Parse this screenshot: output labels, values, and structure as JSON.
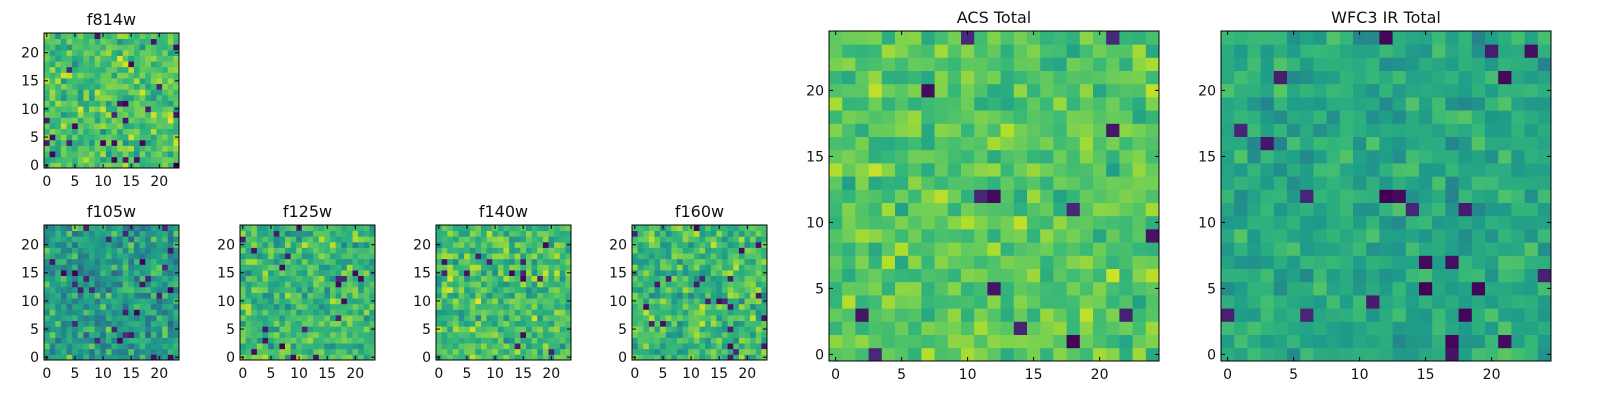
{
  "figure": {
    "colormap": "viridis",
    "frame_color": "#000000"
  },
  "chart_data": [
    {
      "type": "heatmap",
      "title": "f814w",
      "grid": false,
      "shape": [
        24,
        24
      ],
      "vmin": 0,
      "vmax": 1,
      "seed": 814,
      "mean": 0.72,
      "spread": 0.18,
      "dark_fraction": 0.04,
      "xticks": [
        0,
        5,
        10,
        15,
        20
      ],
      "yticks": [
        0,
        5,
        10,
        15,
        20
      ],
      "xlim": [
        -0.5,
        23.5
      ],
      "ylim": [
        -0.5,
        23.5
      ]
    },
    {
      "type": "heatmap",
      "title": "f105w",
      "grid": false,
      "shape": [
        24,
        24
      ],
      "vmin": 0,
      "vmax": 1,
      "seed": 105,
      "mean": 0.55,
      "spread": 0.2,
      "dark_fraction": 0.05,
      "xticks": [
        0,
        5,
        10,
        15,
        20
      ],
      "yticks": [
        0,
        5,
        10,
        15,
        20
      ],
      "xlim": [
        -0.5,
        23.5
      ],
      "ylim": [
        -0.5,
        23.5
      ]
    },
    {
      "type": "heatmap",
      "title": "f125w",
      "grid": false,
      "shape": [
        24,
        24
      ],
      "vmin": 0,
      "vmax": 1,
      "seed": 125,
      "mean": 0.68,
      "spread": 0.18,
      "dark_fraction": 0.03,
      "xticks": [
        0,
        5,
        10,
        15,
        20
      ],
      "yticks": [
        0,
        5,
        10,
        15,
        20
      ],
      "xlim": [
        -0.5,
        23.5
      ],
      "ylim": [
        -0.5,
        23.5
      ]
    },
    {
      "type": "heatmap",
      "title": "f140w",
      "grid": false,
      "shape": [
        24,
        24
      ],
      "vmin": 0,
      "vmax": 1,
      "seed": 140,
      "mean": 0.7,
      "spread": 0.18,
      "dark_fraction": 0.03,
      "xticks": [
        0,
        5,
        10,
        15,
        20
      ],
      "yticks": [
        0,
        5,
        10,
        15,
        20
      ],
      "xlim": [
        -0.5,
        23.5
      ],
      "ylim": [
        -0.5,
        23.5
      ]
    },
    {
      "type": "heatmap",
      "title": "f160w",
      "grid": false,
      "shape": [
        24,
        24
      ],
      "vmin": 0,
      "vmax": 1,
      "seed": 160,
      "mean": 0.68,
      "spread": 0.18,
      "dark_fraction": 0.04,
      "xticks": [
        0,
        5,
        10,
        15,
        20
      ],
      "yticks": [
        0,
        5,
        10,
        15,
        20
      ],
      "xlim": [
        -0.5,
        23.5
      ],
      "ylim": [
        -0.5,
        23.5
      ]
    },
    {
      "type": "heatmap",
      "title": "ACS Total",
      "grid": false,
      "shape": [
        25,
        25
      ],
      "vmin": 0,
      "vmax": 1,
      "seed": 4101,
      "mean": 0.73,
      "spread": 0.13,
      "dark_fraction": 0.025,
      "xticks": [
        0,
        5,
        10,
        15,
        20
      ],
      "yticks": [
        0,
        5,
        10,
        15,
        20
      ],
      "xlim": [
        -0.5,
        24.5
      ],
      "ylim": [
        -0.5,
        24.5
      ]
    },
    {
      "type": "heatmap",
      "title": "WFC3 IR Total",
      "grid": false,
      "shape": [
        25,
        25
      ],
      "vmin": 0,
      "vmax": 1,
      "seed": 3301,
      "mean": 0.6,
      "spread": 0.12,
      "dark_fraction": 0.03,
      "xticks": [
        0,
        5,
        10,
        15,
        20
      ],
      "yticks": [
        0,
        5,
        10,
        15,
        20
      ],
      "xlim": [
        -0.5,
        24.5
      ],
      "ylim": [
        -0.5,
        24.5
      ]
    }
  ]
}
